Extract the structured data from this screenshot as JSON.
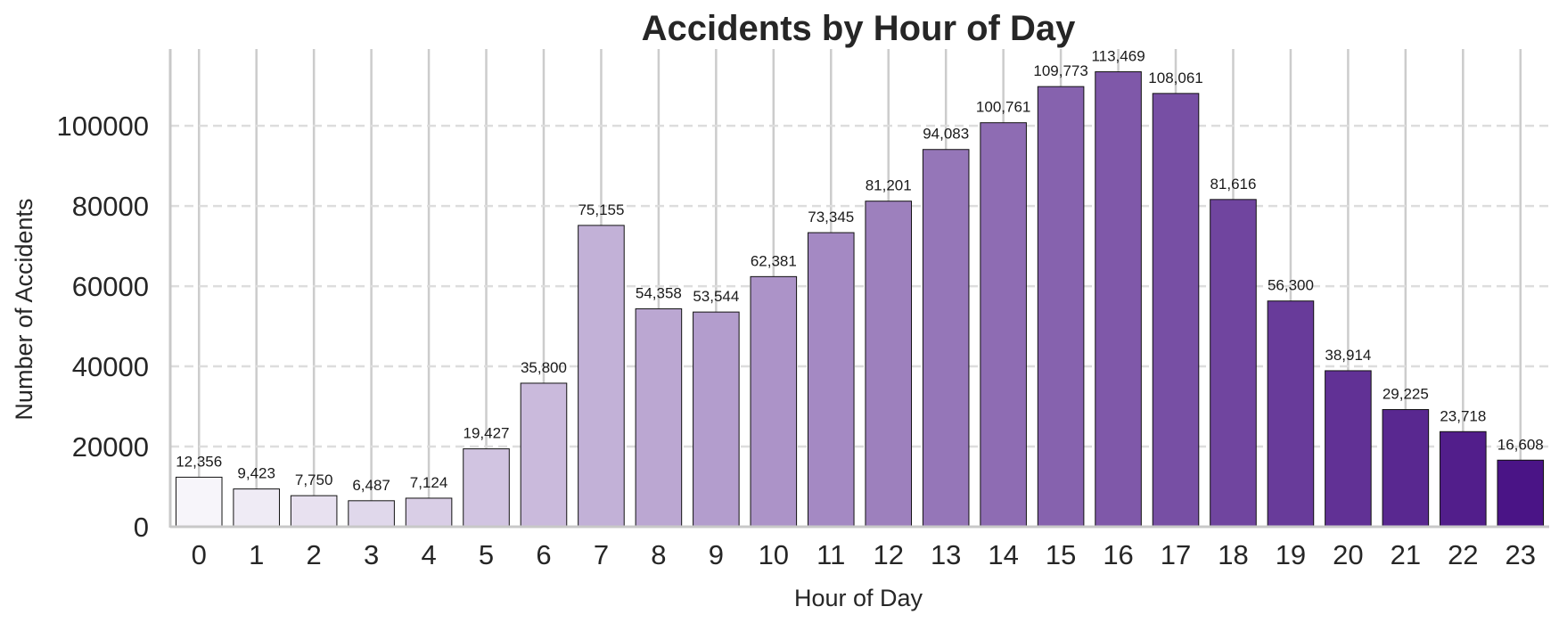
{
  "chart_data": {
    "type": "bar",
    "title": "Accidents by Hour of Day",
    "xlabel": "Hour of Day",
    "ylabel": "Number of Accidents",
    "categories": [
      "0",
      "1",
      "2",
      "3",
      "4",
      "5",
      "6",
      "7",
      "8",
      "9",
      "10",
      "11",
      "12",
      "13",
      "14",
      "15",
      "16",
      "17",
      "18",
      "19",
      "20",
      "21",
      "22",
      "23"
    ],
    "values": [
      12356,
      9423,
      7750,
      6487,
      7124,
      19427,
      35800,
      75155,
      54358,
      53544,
      62381,
      73345,
      81201,
      94083,
      100761,
      109773,
      113469,
      108061,
      81616,
      56300,
      38914,
      29225,
      23718,
      16608
    ],
    "data_labels": [
      "12,356",
      "9,423",
      "7,750",
      "6,487",
      "7,124",
      "19,427",
      "35,800",
      "75,155",
      "54,358",
      "53,544",
      "62,381",
      "73,345",
      "81,201",
      "94,083",
      "100,761",
      "109,773",
      "113,469",
      "108,061",
      "81,616",
      "56,300",
      "38,914",
      "29,225",
      "23,718",
      "16,608"
    ],
    "y_ticks": [
      0,
      20000,
      40000,
      60000,
      80000,
      100000
    ],
    "y_tick_labels": [
      "0",
      "20000",
      "40000",
      "60000",
      "80000",
      "100000"
    ],
    "ylim": [
      0,
      119142
    ],
    "grid": "y-dashed, x-solid",
    "palette": {
      "start": "#f7f5fa",
      "end": "#4a1486"
    },
    "colors": {
      "text": "#262626",
      "grid": "#dddddd",
      "axis": "#c8c8c8",
      "bar_edge": "#111111"
    }
  }
}
